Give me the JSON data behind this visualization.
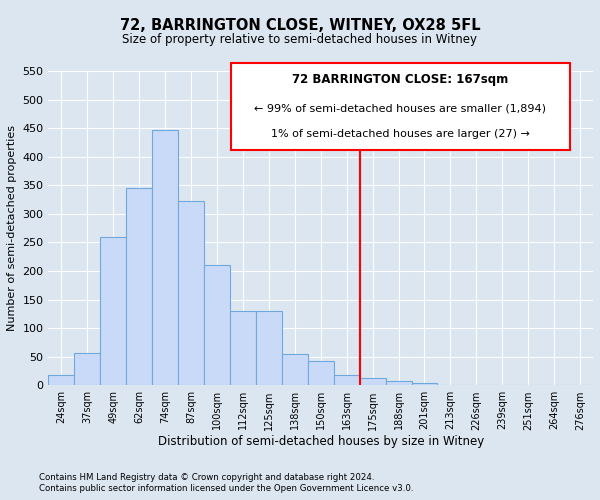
{
  "title": "72, BARRINGTON CLOSE, WITNEY, OX28 5FL",
  "subtitle": "Size of property relative to semi-detached houses in Witney",
  "xlabel": "Distribution of semi-detached houses by size in Witney",
  "ylabel": "Number of semi-detached properties",
  "bar_labels": [
    "24sqm",
    "37sqm",
    "49sqm",
    "62sqm",
    "74sqm",
    "87sqm",
    "100sqm",
    "112sqm",
    "125sqm",
    "138sqm",
    "150sqm",
    "163sqm",
    "175sqm",
    "188sqm",
    "201sqm",
    "213sqm",
    "226sqm",
    "239sqm",
    "251sqm",
    "264sqm",
    "276sqm"
  ],
  "bar_values": [
    18,
    57,
    260,
    345,
    447,
    323,
    210,
    130,
    130,
    55,
    42,
    18,
    12,
    7,
    4,
    0,
    0,
    1,
    0,
    0,
    1
  ],
  "bar_color": "#c9daf8",
  "bar_edge_color": "#6fa8dc",
  "vline_color": "red",
  "annotation_title": "72 BARRINGTON CLOSE: 167sqm",
  "annotation_line1": "← 99% of semi-detached houses are smaller (1,894)",
  "annotation_line2": "1% of semi-detached houses are larger (27) →",
  "ylim": [
    0,
    550
  ],
  "yticks": [
    0,
    50,
    100,
    150,
    200,
    250,
    300,
    350,
    400,
    450,
    500,
    550
  ],
  "footer1": "Contains HM Land Registry data © Crown copyright and database right 2024.",
  "footer2": "Contains public sector information licensed under the Open Government Licence v3.0.",
  "bg_color": "#dce6f1",
  "grid_color": "#ffffff"
}
